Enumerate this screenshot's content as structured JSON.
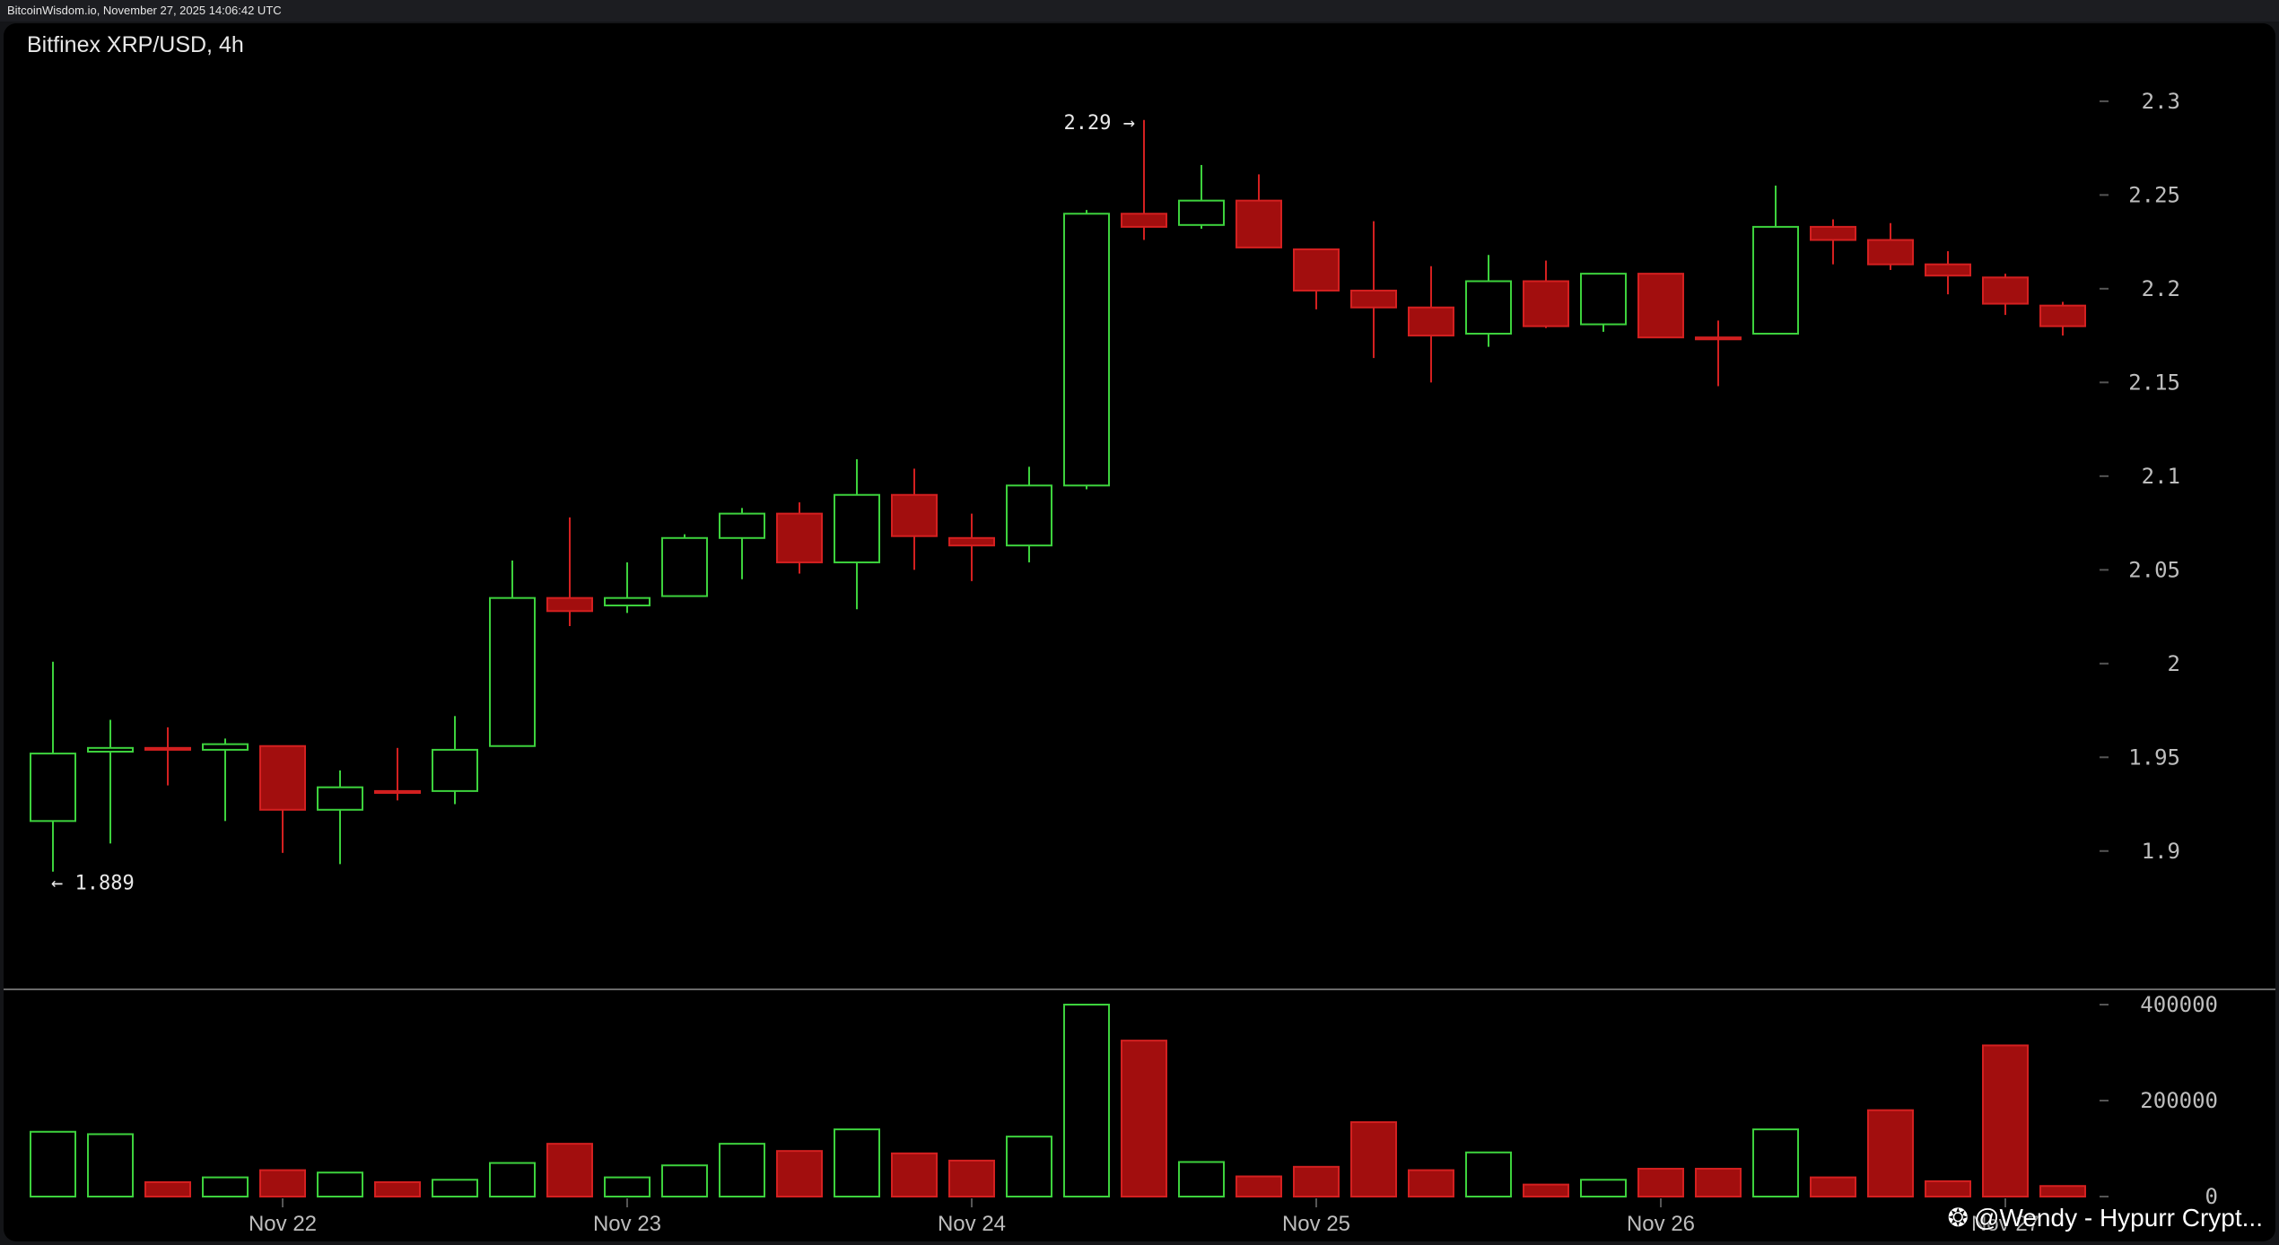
{
  "topbar": {
    "timestamp": "BitcoinWisdom.io, November 27, 2025 14:06:42 UTC"
  },
  "chart": {
    "title": "Bitfinex XRP/USD, 4h"
  },
  "watermark": {
    "text": "@Wendy - Hypurr Crypt...",
    "icon": "paw-icon"
  },
  "colors": {
    "up": "#3dd23d",
    "down": "#a20e0e",
    "downStroke": "#d42020",
    "axis": "#bdbdbd",
    "grid": "#555555"
  },
  "chart_data": {
    "type": "candlestick",
    "title": "Bitfinex XRP/USD, 4h",
    "price_axis": {
      "min": 1.875,
      "max": 2.31,
      "ticks": [
        "2.3",
        "2.25",
        "2.2",
        "2.15",
        "2.1",
        "2.05",
        "2",
        "1.95",
        "1.9"
      ]
    },
    "volume_axis": {
      "min": 0,
      "max": 400000,
      "ticks": [
        "400000",
        "200000",
        "0"
      ]
    },
    "x_labels": [
      {
        "label": "Nov 22",
        "index": 4
      },
      {
        "label": "Nov 23",
        "index": 10
      },
      {
        "label": "Nov 24",
        "index": 16
      },
      {
        "label": "Nov 25",
        "index": 22
      },
      {
        "label": "Nov 26",
        "index": 28
      },
      {
        "label": "Nov 27",
        "index": 34
      }
    ],
    "annotations": [
      {
        "text": "2.29 →",
        "index": 19,
        "value": 2.29,
        "side": "left"
      },
      {
        "text": "← 1.889",
        "index": 0,
        "value": 1.889,
        "side": "right"
      }
    ],
    "candles": [
      {
        "o": 1.916,
        "h": 2.001,
        "l": 1.889,
        "c": 1.952,
        "v": 135000
      },
      {
        "o": 1.953,
        "h": 1.97,
        "l": 1.904,
        "c": 1.955,
        "v": 130000
      },
      {
        "o": 1.955,
        "h": 1.966,
        "l": 1.935,
        "c": 1.954,
        "v": 30000
      },
      {
        "o": 1.954,
        "h": 1.96,
        "l": 1.916,
        "c": 1.957,
        "v": 40000
      },
      {
        "o": 1.956,
        "h": 1.956,
        "l": 1.899,
        "c": 1.922,
        "v": 55000
      },
      {
        "o": 1.922,
        "h": 1.943,
        "l": 1.893,
        "c": 1.934,
        "v": 50000
      },
      {
        "o": 1.932,
        "h": 1.955,
        "l": 1.927,
        "c": 1.931,
        "v": 30000
      },
      {
        "o": 1.932,
        "h": 1.972,
        "l": 1.925,
        "c": 1.954,
        "v": 35000
      },
      {
        "o": 1.956,
        "h": 2.055,
        "l": 1.956,
        "c": 2.035,
        "v": 70000
      },
      {
        "o": 2.035,
        "h": 2.078,
        "l": 2.02,
        "c": 2.028,
        "v": 110000
      },
      {
        "o": 2.031,
        "h": 2.054,
        "l": 2.027,
        "c": 2.035,
        "v": 40000
      },
      {
        "o": 2.036,
        "h": 2.069,
        "l": 2.036,
        "c": 2.067,
        "v": 65000
      },
      {
        "o": 2.067,
        "h": 2.083,
        "l": 2.045,
        "c": 2.08,
        "v": 110000
      },
      {
        "o": 2.08,
        "h": 2.086,
        "l": 2.048,
        "c": 2.054,
        "v": 95000
      },
      {
        "o": 2.054,
        "h": 2.109,
        "l": 2.029,
        "c": 2.09,
        "v": 140000
      },
      {
        "o": 2.09,
        "h": 2.104,
        "l": 2.05,
        "c": 2.068,
        "v": 90000
      },
      {
        "o": 2.067,
        "h": 2.08,
        "l": 2.044,
        "c": 2.063,
        "v": 75000
      },
      {
        "o": 2.063,
        "h": 2.105,
        "l": 2.054,
        "c": 2.095,
        "v": 125000
      },
      {
        "o": 2.095,
        "h": 2.242,
        "l": 2.093,
        "c": 2.24,
        "v": 400000
      },
      {
        "o": 2.24,
        "h": 2.29,
        "l": 2.226,
        "c": 2.233,
        "v": 325000
      },
      {
        "o": 2.234,
        "h": 2.266,
        "l": 2.232,
        "c": 2.247,
        "v": 72000
      },
      {
        "o": 2.247,
        "h": 2.261,
        "l": 2.222,
        "c": 2.222,
        "v": 42000
      },
      {
        "o": 2.221,
        "h": 2.221,
        "l": 2.189,
        "c": 2.199,
        "v": 62000
      },
      {
        "o": 2.199,
        "h": 2.236,
        "l": 2.163,
        "c": 2.19,
        "v": 155000
      },
      {
        "o": 2.19,
        "h": 2.212,
        "l": 2.15,
        "c": 2.175,
        "v": 55000
      },
      {
        "o": 2.176,
        "h": 2.218,
        "l": 2.169,
        "c": 2.204,
        "v": 92000
      },
      {
        "o": 2.204,
        "h": 2.215,
        "l": 2.179,
        "c": 2.18,
        "v": 25000
      },
      {
        "o": 2.181,
        "h": 2.208,
        "l": 2.177,
        "c": 2.208,
        "v": 35000
      },
      {
        "o": 2.208,
        "h": 2.208,
        "l": 2.174,
        "c": 2.174,
        "v": 58000
      },
      {
        "o": 2.174,
        "h": 2.183,
        "l": 2.148,
        "c": 2.173,
        "v": 58000
      },
      {
        "o": 2.176,
        "h": 2.255,
        "l": 2.176,
        "c": 2.233,
        "v": 140000
      },
      {
        "o": 2.233,
        "h": 2.237,
        "l": 2.213,
        "c": 2.226,
        "v": 40000
      },
      {
        "o": 2.226,
        "h": 2.235,
        "l": 2.21,
        "c": 2.213,
        "v": 180000
      },
      {
        "o": 2.213,
        "h": 2.22,
        "l": 2.197,
        "c": 2.207,
        "v": 32000
      },
      {
        "o": 2.206,
        "h": 2.208,
        "l": 2.186,
        "c": 2.192,
        "v": 315000
      },
      {
        "o": 2.191,
        "h": 2.193,
        "l": 2.175,
        "c": 2.18,
        "v": 22000
      }
    ]
  }
}
